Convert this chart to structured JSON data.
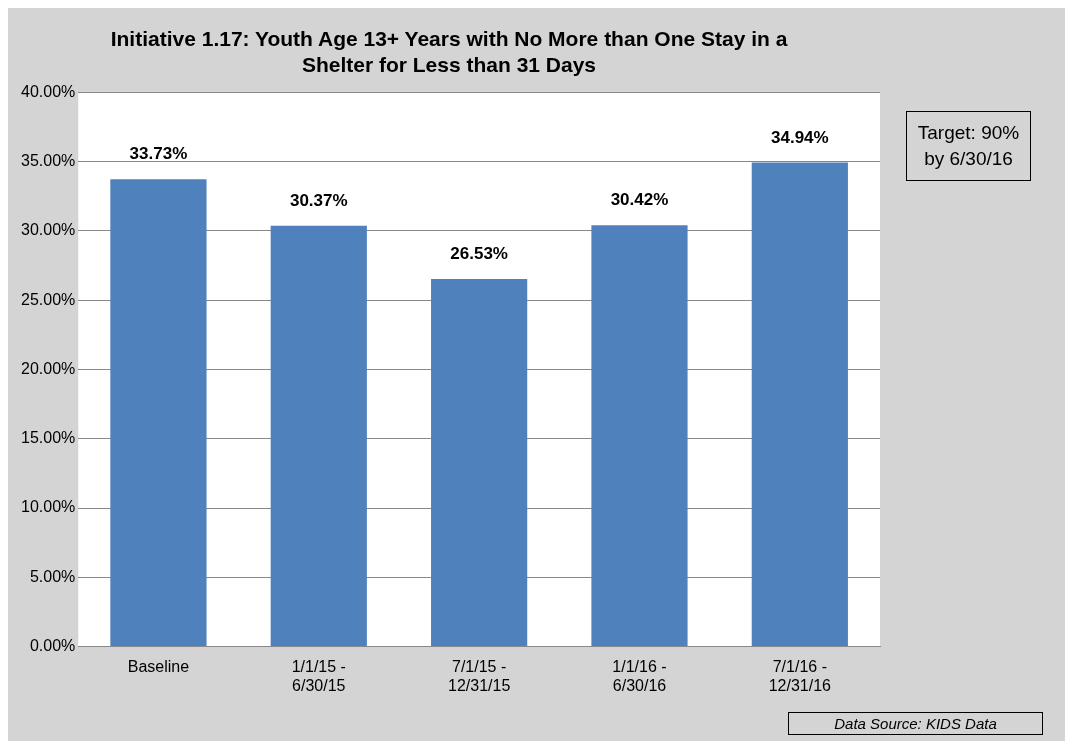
{
  "chart_data": {
    "type": "bar",
    "title": "Initiative 1.17: Youth Age 13+ Years with No More than One Stay in a Shelter for Less than 31 Days",
    "categories": [
      "Baseline",
      "1/1/15 - 6/30/15",
      "7/1/15 - 12/31/15",
      "1/1/16 - 6/30/16",
      "7/1/16 - 12/31/16"
    ],
    "values": [
      33.73,
      30.37,
      26.53,
      30.42,
      34.94
    ],
    "value_labels": [
      "33.73%",
      "30.37%",
      "26.53%",
      "30.42%",
      "34.94%"
    ],
    "color": "#4f81bd",
    "ylim": [
      0,
      40
    ],
    "yticks": [
      {
        "value": 0,
        "label": "0.00%"
      },
      {
        "value": 5,
        "label": "5.00%"
      },
      {
        "value": 10,
        "label": "10.00%"
      },
      {
        "value": 15,
        "label": "15.00%"
      },
      {
        "value": 20,
        "label": "20.00%"
      },
      {
        "value": 25,
        "label": "25.00%"
      },
      {
        "value": 30,
        "label": "30.00%"
      },
      {
        "value": 35,
        "label": "35.00%"
      },
      {
        "value": 40,
        "label": "40.00%"
      }
    ],
    "grid": "y",
    "legend": false,
    "annotations": [
      "Target: 90% by 6/30/16",
      "Data Source: KIDS Data"
    ]
  }
}
